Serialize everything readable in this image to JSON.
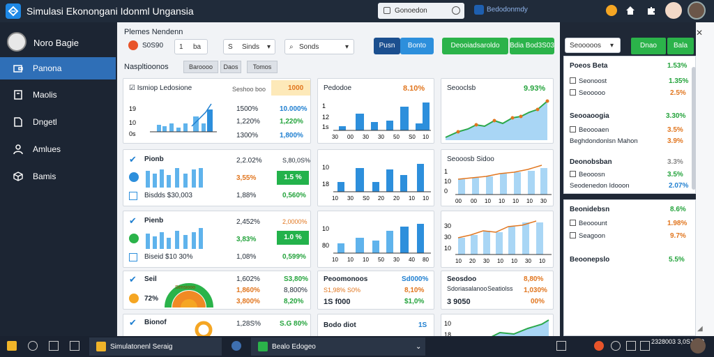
{
  "window": {
    "title": "Simulasi Ekonongani Idonml Ungansia"
  },
  "topbar": {
    "search_label": "Gonoedon",
    "app_label": "Bedodonmdy"
  },
  "sidebar": {
    "user_name": "Noro Bagie",
    "items": [
      {
        "label": "Panona",
        "icon": "wallet-icon",
        "active": true
      },
      {
        "label": "Maolis",
        "icon": "document-icon",
        "active": false
      },
      {
        "label": "Dngetl",
        "icon": "file-icon",
        "active": false
      },
      {
        "label": "Amlues",
        "icon": "user-icon",
        "active": false
      },
      {
        "label": "Bamis",
        "icon": "cube-icon",
        "active": false
      }
    ]
  },
  "main": {
    "title": "Plemes Nendenn",
    "counter_value": "S0S90",
    "stepper": {
      "left": "1",
      "right": "ba"
    },
    "select_a": {
      "prefix": "S",
      "label": "Sinds"
    },
    "select_b": {
      "label": "Sonds"
    },
    "buttons": {
      "b1": "Pusn",
      "b2": "Bonto",
      "b3": "Deooiadsaroldo",
      "b4": "Bdia Bod3S03"
    },
    "subheading": "Naspltioonos",
    "chips": [
      "Baroooo",
      "Daos",
      "Tomos"
    ]
  },
  "cards": {
    "c1": {
      "title": "Ismiop Ledosione",
      "col_head": "Seshoo boo",
      "hl_val": "1000",
      "ticks": [
        "19",
        "10",
        "0s"
      ],
      "rows": [
        [
          "1500%",
          "10.000%"
        ],
        [
          "1,220%",
          "1,220%"
        ],
        [
          "1300%",
          "1,800%"
        ]
      ]
    },
    "c2": {
      "title": "Pedodoe",
      "value": "8.10%",
      "ticks": [
        "1",
        "12",
        "1s"
      ],
      "xlabels": [
        "30",
        "00",
        "30",
        "30",
        "50",
        "S0",
        "10"
      ]
    },
    "c3": {
      "title": "Seooclsb",
      "value": "9.93%"
    },
    "c4": {
      "title": "Pionb",
      "rows": [
        [
          "2,2.02%",
          "S,80,0S%"
        ],
        [
          "3,55%",
          "1.5 %"
        ],
        [
          "1,88%",
          "0,560%"
        ]
      ],
      "footer": "Bisdds $30,003"
    },
    "c5": {
      "ticks": [
        "10",
        "18"
      ],
      "xlabels": [
        "10",
        "30",
        "S0",
        "20",
        "20",
        "10",
        "10"
      ]
    },
    "c6": {
      "title": "Seooosb Sidoo",
      "ticks": [
        "1",
        "10",
        "0"
      ],
      "xlabels": [
        "00",
        "00",
        "10",
        "10",
        "10",
        "10",
        "30"
      ]
    },
    "c7": {
      "title": "Pienb",
      "rows": [
        [
          "2,452%",
          "2,0000%"
        ],
        [
          "3,83%",
          "1.0 %"
        ],
        [
          "1,08%",
          "0,599%"
        ]
      ],
      "footer": "Biseid $10 30%"
    },
    "c8": {
      "ticks": [
        "10",
        "80"
      ],
      "xlabels": [
        "10",
        "10",
        "10",
        "50",
        "30",
        "40",
        "80"
      ]
    },
    "c9": {
      "ticks": [
        "30",
        "30",
        "10"
      ],
      "xlabels": [
        "10",
        "20",
        "30",
        "10",
        "10",
        "30",
        "10"
      ]
    },
    "c10": {
      "title": "Seil",
      "sub_pct": "72%",
      "gauge_label": "Sensiooo",
      "rows": [
        [
          "1,602%",
          "S3,80%"
        ],
        [
          "1,860%",
          "8,800%"
        ],
        [
          "3,800%",
          "8,20%"
        ]
      ]
    },
    "c11": {
      "title": "Peoomonoos",
      "val1": "Sd000%",
      "row2": "S1,98% S0%",
      "val2": "8,10%",
      "row3": "1S f000",
      "val3": "$1,0%"
    },
    "c12": {
      "title": "Seosdoo",
      "row1": "Sdoriasalanoo",
      "val1": "8,80%",
      "row2": "Seatiolss",
      "val2": "1,030%",
      "row3": "3 9050",
      "val3": "00%"
    },
    "c13": {
      "title": "Bionof",
      "row1": "1,28S%",
      "val1": "S.G 80%"
    },
    "c14": {
      "title": "Bodo diot",
      "val": "1S"
    },
    "c15": {
      "ticks": [
        "10",
        "18"
      ]
    }
  },
  "right_panel": {
    "select_label": "Seooooos",
    "btn1": "Dnao",
    "btn2": "Bala",
    "sections": [
      {
        "head": "Poeos Beta",
        "head_val": "1.53%",
        "rows": [
          {
            "label": "Seonoost",
            "val": "1.35%"
          },
          {
            "label": "Seooooo",
            "val": "2.5%"
          }
        ]
      },
      {
        "head": "Seooaoogia",
        "head_val": "3.30%",
        "rows": [
          {
            "label": "Beoooaen",
            "val": "3.5%"
          },
          {
            "label": "Beghdondonlsn Mahon",
            "val": "3.9%"
          }
        ]
      },
      {
        "head": "Deonobsban",
        "head_val": "3.3%",
        "rows": [
          {
            "label": "Beooosn",
            "val": "3.5%"
          },
          {
            "label": "Seodenedon Idooon",
            "val": "2.07%"
          }
        ]
      }
    ],
    "panel2": [
      {
        "head": "Beonidebsn",
        "head_val": "8.6%",
        "rows": [
          {
            "label": "Beooount",
            "val": "1.98%"
          },
          {
            "label": "Seagoon",
            "val": "9.7%"
          }
        ]
      },
      {
        "head": "Beoonepslo",
        "head_val": "5.5%",
        "rows": []
      }
    ]
  },
  "taskbar": {
    "task1": "Simulatonenl Seraig",
    "task2": "Bealo Edogeo",
    "clock": "2328003 3,0S1003"
  },
  "colors": {
    "accent": "#2f6fb7",
    "green": "#2bb34a",
    "bar": "#5fb3ec",
    "orange": "#e1761f"
  }
}
